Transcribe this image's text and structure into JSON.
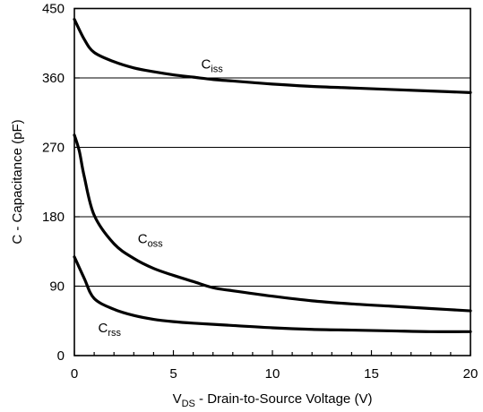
{
  "chart_data": {
    "type": "line",
    "x_axis": {
      "label_main": "V",
      "label_sub": "DS",
      "label_rest": " - Drain-to-Source Voltage (V)",
      "lim": [
        0,
        20
      ],
      "ticks": [
        0,
        5,
        10,
        15,
        20
      ],
      "tick_labels": [
        "0",
        "5",
        "10",
        "15",
        "20"
      ]
    },
    "y_axis": {
      "label": "C - Capacitance (pF)",
      "lim": [
        0,
        450
      ],
      "ticks": [
        0,
        90,
        180,
        270,
        360,
        450
      ],
      "tick_labels": [
        "0",
        "90",
        "180",
        "270",
        "360",
        "450"
      ]
    },
    "grid": "horizontal",
    "series": [
      {
        "name": "Ciss",
        "label_main": "C",
        "label_sub": "iss",
        "x": [
          0,
          0.5,
          1,
          2,
          3,
          4,
          5,
          6,
          7,
          8,
          9,
          10,
          12,
          14,
          16,
          18,
          20
        ],
        "values": [
          436,
          410,
          393,
          381,
          373,
          368,
          364,
          361,
          358,
          356,
          354,
          352,
          349,
          347,
          345,
          343,
          341
        ]
      },
      {
        "name": "Coss",
        "label_main": "C",
        "label_sub": "oss",
        "x": [
          0,
          0.25,
          0.5,
          1,
          2,
          3,
          4,
          5,
          6,
          7,
          8,
          10,
          12,
          14,
          16,
          18,
          20
        ],
        "values": [
          286,
          265,
          232,
          182,
          145,
          126,
          113,
          104,
          96,
          88,
          84,
          77,
          71,
          67,
          64,
          61,
          58
        ]
      },
      {
        "name": "Crss",
        "label_main": "C",
        "label_sub": "rss",
        "x": [
          0,
          0.5,
          1,
          2,
          3,
          4,
          5,
          6,
          8,
          10,
          12,
          14,
          16,
          18,
          20
        ],
        "values": [
          128,
          100,
          74,
          60,
          52,
          47,
          44,
          42,
          39,
          36,
          34,
          33,
          32,
          31,
          31
        ]
      }
    ]
  }
}
